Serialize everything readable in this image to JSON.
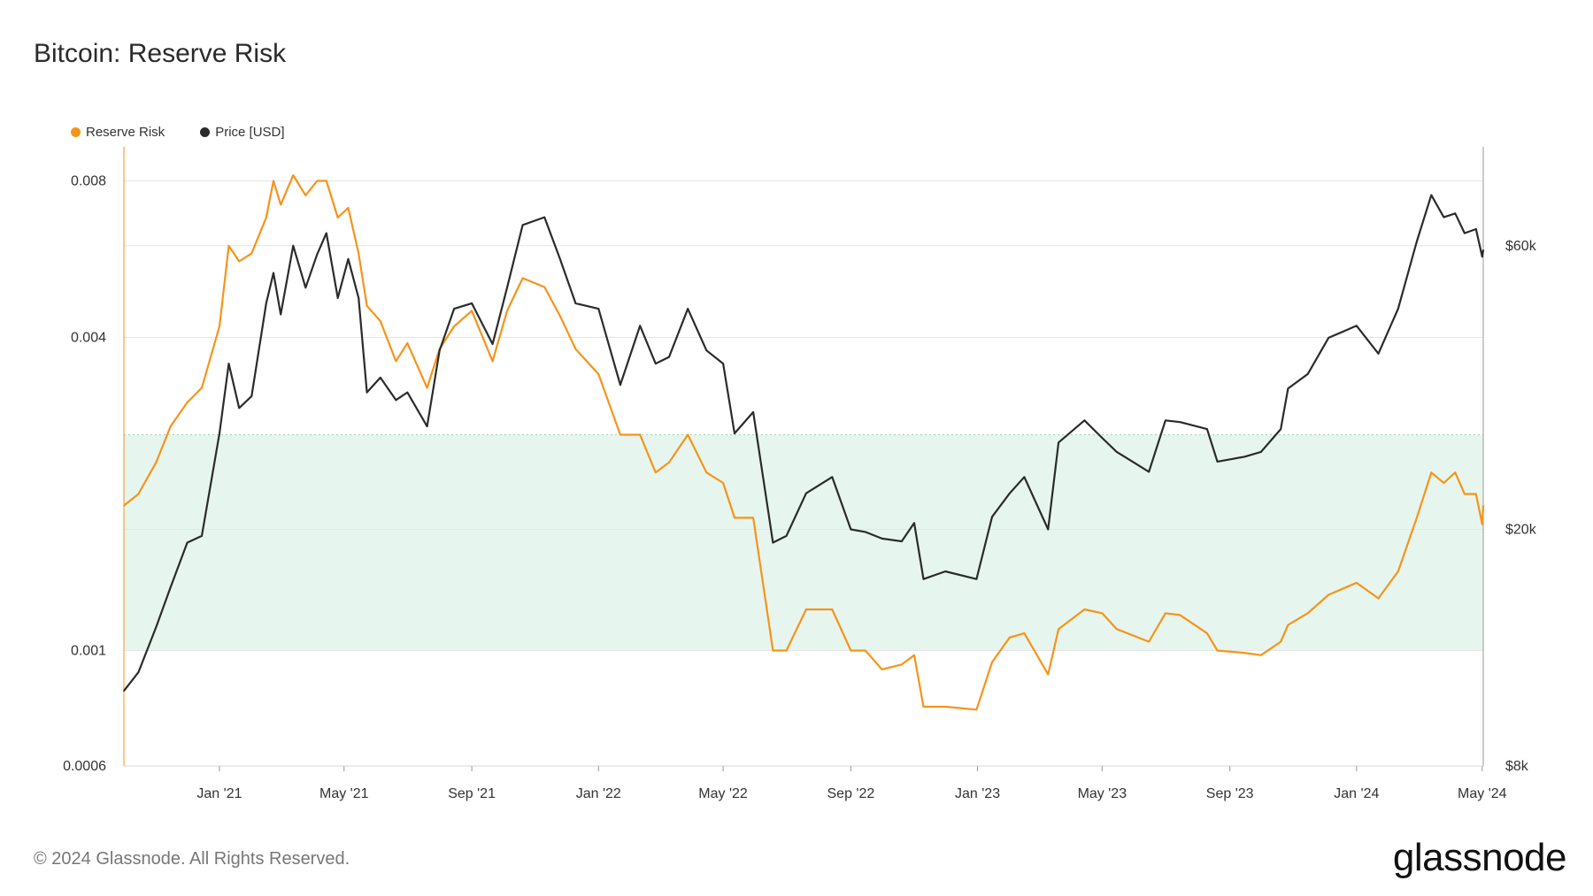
{
  "title": "Bitcoin: Reserve Risk",
  "footer": "© 2024 Glassnode. All Rights Reserved.",
  "brand": "glassnode",
  "colors": {
    "reserve_risk": "#f7931a",
    "price": "#2b2b2b",
    "band_fill": "#e6f6ee",
    "band_line": "#9bd3b4",
    "grid": "#e6e6e6"
  },
  "chart_data": {
    "type": "line",
    "title": "Bitcoin: Reserve Risk",
    "legend": [
      {
        "name": "Reserve Risk",
        "color": "#f7931a"
      },
      {
        "name": "Price [USD]",
        "color": "#2b2b2b"
      }
    ],
    "legend_position": "top-left",
    "x_ticks": [
      "Jan '21",
      "May '21",
      "Sep '21",
      "Jan '22",
      "May '22",
      "Sep '22",
      "Jan '23",
      "May '23",
      "Sep '23",
      "Jan '24",
      "May '24"
    ],
    "x_tick_dates": [
      "2021-01-01",
      "2021-05-01",
      "2021-09-01",
      "2022-01-01",
      "2022-05-01",
      "2022-09-01",
      "2023-01-01",
      "2023-05-01",
      "2023-09-01",
      "2024-01-01",
      "2024-05-01"
    ],
    "x_range": [
      "2020-10-01",
      "2024-05-02"
    ],
    "y_left": {
      "scale": "log",
      "range": [
        0.0006,
        0.0093
      ],
      "ticks": [
        0.0006,
        0.001,
        0.004,
        0.008
      ],
      "tick_labels": [
        "0.0006",
        "0.001",
        "0.004",
        "0.008"
      ]
    },
    "y_right": {
      "scale": "log",
      "range": [
        8000,
        88000
      ],
      "ticks": [
        8000,
        20000,
        60000
      ],
      "tick_labels": [
        "$8k",
        "$20k",
        "$60k"
      ]
    },
    "band": {
      "axis": "left",
      "from": 0.001,
      "to": 0.0026
    },
    "grid": true,
    "series": [
      {
        "name": "Reserve Risk",
        "axis": "left",
        "points": [
          [
            "2020-10-01",
            0.0019
          ],
          [
            "2020-10-15",
            0.002
          ],
          [
            "2020-11-01",
            0.0023
          ],
          [
            "2020-11-15",
            0.0027
          ],
          [
            "2020-12-01",
            0.003
          ],
          [
            "2020-12-15",
            0.0032
          ],
          [
            "2021-01-01",
            0.0042
          ],
          [
            "2021-01-10",
            0.006
          ],
          [
            "2021-01-20",
            0.0056
          ],
          [
            "2021-02-01",
            0.0058
          ],
          [
            "2021-02-15",
            0.0068
          ],
          [
            "2021-02-22",
            0.008
          ],
          [
            "2021-03-01",
            0.0072
          ],
          [
            "2021-03-13",
            0.0082
          ],
          [
            "2021-03-25",
            0.0075
          ],
          [
            "2021-04-05",
            0.008
          ],
          [
            "2021-04-14",
            0.008
          ],
          [
            "2021-04-25",
            0.0068
          ],
          [
            "2021-05-05",
            0.0071
          ],
          [
            "2021-05-15",
            0.0058
          ],
          [
            "2021-05-23",
            0.0046
          ],
          [
            "2021-06-05",
            0.0043
          ],
          [
            "2021-06-20",
            0.0036
          ],
          [
            "2021-07-01",
            0.0039
          ],
          [
            "2021-07-20",
            0.0032
          ],
          [
            "2021-08-01",
            0.0038
          ],
          [
            "2021-08-15",
            0.0042
          ],
          [
            "2021-09-01",
            0.0045
          ],
          [
            "2021-09-21",
            0.0036
          ],
          [
            "2021-10-05",
            0.0045
          ],
          [
            "2021-10-20",
            0.0052
          ],
          [
            "2021-11-10",
            0.005
          ],
          [
            "2021-11-25",
            0.0044
          ],
          [
            "2021-12-10",
            0.0038
          ],
          [
            "2022-01-01",
            0.0034
          ],
          [
            "2022-01-22",
            0.0026
          ],
          [
            "2022-02-10",
            0.0026
          ],
          [
            "2022-02-25",
            0.0022
          ],
          [
            "2022-03-10",
            0.0023
          ],
          [
            "2022-03-28",
            0.0026
          ],
          [
            "2022-04-15",
            0.0022
          ],
          [
            "2022-05-01",
            0.0021
          ],
          [
            "2022-05-12",
            0.0018
          ],
          [
            "2022-05-30",
            0.0018
          ],
          [
            "2022-06-18",
            0.001
          ],
          [
            "2022-07-01",
            0.001
          ],
          [
            "2022-07-20",
            0.0012
          ],
          [
            "2022-08-14",
            0.0012
          ],
          [
            "2022-09-01",
            0.001
          ],
          [
            "2022-09-15",
            0.001
          ],
          [
            "2022-10-01",
            0.00092
          ],
          [
            "2022-10-20",
            0.00094
          ],
          [
            "2022-11-01",
            0.00098
          ],
          [
            "2022-11-10",
            0.00078
          ],
          [
            "2022-12-01",
            0.00078
          ],
          [
            "2022-12-31",
            0.00077
          ],
          [
            "2023-01-15",
            0.00095
          ],
          [
            "2023-02-01",
            0.00106
          ],
          [
            "2023-02-15",
            0.00108
          ],
          [
            "2023-03-10",
            0.0009
          ],
          [
            "2023-03-20",
            0.0011
          ],
          [
            "2023-04-14",
            0.0012
          ],
          [
            "2023-05-01",
            0.00118
          ],
          [
            "2023-05-15",
            0.0011
          ],
          [
            "2023-06-15",
            0.00104
          ],
          [
            "2023-07-01",
            0.00118
          ],
          [
            "2023-07-15",
            0.00117
          ],
          [
            "2023-08-10",
            0.00108
          ],
          [
            "2023-08-20",
            0.001
          ],
          [
            "2023-09-15",
            0.00099
          ],
          [
            "2023-10-01",
            0.00098
          ],
          [
            "2023-10-20",
            0.00104
          ],
          [
            "2023-10-27",
            0.00112
          ],
          [
            "2023-11-15",
            0.00118
          ],
          [
            "2023-12-05",
            0.00128
          ],
          [
            "2024-01-01",
            0.00135
          ],
          [
            "2024-01-22",
            0.00126
          ],
          [
            "2024-02-10",
            0.00142
          ],
          [
            "2024-02-28",
            0.0018
          ],
          [
            "2024-03-13",
            0.0022
          ],
          [
            "2024-03-25",
            0.0021
          ],
          [
            "2024-04-05",
            0.0022
          ],
          [
            "2024-04-14",
            0.002
          ],
          [
            "2024-04-25",
            0.002
          ],
          [
            "2024-05-01",
            0.00175
          ],
          [
            "2024-05-02",
            0.0019
          ]
        ]
      },
      {
        "name": "Price [USD]",
        "axis": "right",
        "points": [
          [
            "2020-10-01",
            10700
          ],
          [
            "2020-10-15",
            11500
          ],
          [
            "2020-11-01",
            13700
          ],
          [
            "2020-11-15",
            16000
          ],
          [
            "2020-12-01",
            19000
          ],
          [
            "2020-12-15",
            19500
          ],
          [
            "2021-01-01",
            29000
          ],
          [
            "2021-01-10",
            38000
          ],
          [
            "2021-01-20",
            32000
          ],
          [
            "2021-02-01",
            33500
          ],
          [
            "2021-02-15",
            48000
          ],
          [
            "2021-02-22",
            54000
          ],
          [
            "2021-03-01",
            46000
          ],
          [
            "2021-03-13",
            60000
          ],
          [
            "2021-03-25",
            51000
          ],
          [
            "2021-04-05",
            58000
          ],
          [
            "2021-04-14",
            63000
          ],
          [
            "2021-04-25",
            49000
          ],
          [
            "2021-05-05",
            57000
          ],
          [
            "2021-05-15",
            49000
          ],
          [
            "2021-05-23",
            34000
          ],
          [
            "2021-06-05",
            36000
          ],
          [
            "2021-06-20",
            33000
          ],
          [
            "2021-07-01",
            34000
          ],
          [
            "2021-07-20",
            29800
          ],
          [
            "2021-08-01",
            40000
          ],
          [
            "2021-08-15",
            47000
          ],
          [
            "2021-09-01",
            48000
          ],
          [
            "2021-09-21",
            41000
          ],
          [
            "2021-10-05",
            51000
          ],
          [
            "2021-10-20",
            65000
          ],
          [
            "2021-11-10",
            67000
          ],
          [
            "2021-11-25",
            57000
          ],
          [
            "2021-12-10",
            48000
          ],
          [
            "2022-01-01",
            47000
          ],
          [
            "2022-01-22",
            35000
          ],
          [
            "2022-02-10",
            44000
          ],
          [
            "2022-02-25",
            38000
          ],
          [
            "2022-03-10",
            39000
          ],
          [
            "2022-03-28",
            47000
          ],
          [
            "2022-04-15",
            40000
          ],
          [
            "2022-05-01",
            38000
          ],
          [
            "2022-05-12",
            29000
          ],
          [
            "2022-05-30",
            31500
          ],
          [
            "2022-06-18",
            19000
          ],
          [
            "2022-07-01",
            19500
          ],
          [
            "2022-07-20",
            23000
          ],
          [
            "2022-08-14",
            24500
          ],
          [
            "2022-09-01",
            20000
          ],
          [
            "2022-09-15",
            19800
          ],
          [
            "2022-10-01",
            19300
          ],
          [
            "2022-10-20",
            19100
          ],
          [
            "2022-11-01",
            20500
          ],
          [
            "2022-11-10",
            16500
          ],
          [
            "2022-12-01",
            17000
          ],
          [
            "2022-12-31",
            16500
          ],
          [
            "2023-01-15",
            21000
          ],
          [
            "2023-02-01",
            23000
          ],
          [
            "2023-02-15",
            24500
          ],
          [
            "2023-03-10",
            20000
          ],
          [
            "2023-03-20",
            28000
          ],
          [
            "2023-04-14",
            30500
          ],
          [
            "2023-05-01",
            28500
          ],
          [
            "2023-05-15",
            27000
          ],
          [
            "2023-06-15",
            25000
          ],
          [
            "2023-07-01",
            30500
          ],
          [
            "2023-07-15",
            30300
          ],
          [
            "2023-08-10",
            29500
          ],
          [
            "2023-08-20",
            26000
          ],
          [
            "2023-09-15",
            26500
          ],
          [
            "2023-10-01",
            27000
          ],
          [
            "2023-10-20",
            29500
          ],
          [
            "2023-10-27",
            34500
          ],
          [
            "2023-11-15",
            36500
          ],
          [
            "2023-12-05",
            42000
          ],
          [
            "2024-01-01",
            44000
          ],
          [
            "2024-01-22",
            39500
          ],
          [
            "2024-02-10",
            47000
          ],
          [
            "2024-02-28",
            61000
          ],
          [
            "2024-03-13",
            73000
          ],
          [
            "2024-03-25",
            67000
          ],
          [
            "2024-04-05",
            68000
          ],
          [
            "2024-04-14",
            63000
          ],
          [
            "2024-04-25",
            64000
          ],
          [
            "2024-05-01",
            57500
          ],
          [
            "2024-05-02",
            59000
          ]
        ]
      }
    ]
  }
}
